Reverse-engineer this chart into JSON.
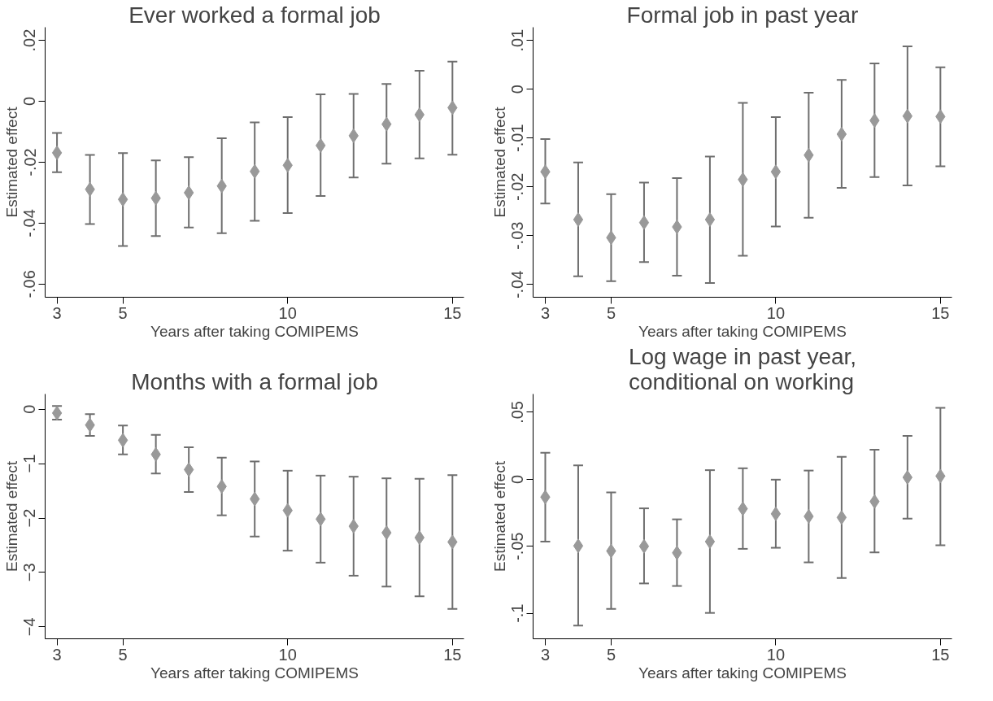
{
  "chart_data": [
    {
      "type": "scatter",
      "title": "Ever worked a formal job",
      "xlabel": "Years after taking COMIPEMS",
      "ylabel": "Estimated effect",
      "marker": "diamond",
      "grid": false,
      "x": [
        3,
        4,
        5,
        6,
        7,
        8,
        9,
        10,
        11,
        12,
        13,
        14,
        15
      ],
      "series": [
        {
          "color": "#999999",
          "values": [
            -0.0169,
            -0.0289,
            -0.0322,
            -0.0318,
            -0.03,
            -0.0278,
            -0.023,
            -0.021,
            -0.0145,
            -0.0113,
            -0.0075,
            -0.0044,
            -0.0021
          ],
          "errors": [
            [
              -0.0233,
              -0.0104
            ],
            [
              -0.0403,
              -0.0176
            ],
            [
              -0.0475,
              -0.017
            ],
            [
              -0.0442,
              -0.0194
            ],
            [
              -0.0414,
              -0.0183
            ],
            [
              -0.0433,
              -0.0121
            ],
            [
              -0.0392,
              -0.0069
            ],
            [
              -0.0367,
              -0.0052
            ],
            [
              -0.0311,
              0.0023
            ],
            [
              -0.025,
              0.0024
            ],
            [
              -0.0205,
              0.0057
            ],
            [
              -0.0187,
              0.01
            ],
            [
              -0.0175,
              0.013
            ]
          ]
        }
      ],
      "xlim": [
        2.64,
        15.35
      ],
      "ylim": [
        -0.0643,
        0.0243
      ],
      "xticks": [
        3,
        5,
        10,
        15
      ],
      "yticks": [
        {
          "value": -0.06,
          "label": "-.06"
        },
        {
          "value": -0.04,
          "label": "-.04"
        },
        {
          "value": -0.02,
          "label": "-.02"
        },
        0,
        {
          "value": 0.02,
          "label": ".02"
        }
      ]
    },
    {
      "type": "scatter",
      "title": "Formal job in past year",
      "xlabel": "Years after taking COMIPEMS",
      "ylabel": "Estimated effect",
      "marker": "diamond",
      "grid": false,
      "x": [
        3,
        4,
        5,
        6,
        7,
        8,
        9,
        10,
        11,
        12,
        13,
        14,
        15
      ],
      "series": [
        {
          "color": "#999999",
          "values": [
            -0.0169,
            -0.0267,
            -0.0304,
            -0.0273,
            -0.0282,
            -0.0267,
            -0.0185,
            -0.0169,
            -0.0135,
            -0.0092,
            -0.0064,
            -0.0055,
            -0.0056
          ],
          "errors": [
            [
              -0.0234,
              -0.0102
            ],
            [
              -0.0383,
              -0.015
            ],
            [
              -0.0393,
              -0.0215
            ],
            [
              -0.0354,
              -0.0191
            ],
            [
              -0.0382,
              -0.0182
            ],
            [
              -0.0397,
              -0.0138
            ],
            [
              -0.0341,
              -0.0028
            ],
            [
              -0.0281,
              -0.0057
            ],
            [
              -0.0263,
              -0.0007
            ],
            [
              -0.0202,
              0.0019
            ],
            [
              -0.018,
              0.0053
            ],
            [
              -0.0197,
              0.0088
            ],
            [
              -0.0158,
              0.0045
            ]
          ]
        }
      ],
      "xlim": [
        2.63,
        15.35
      ],
      "ylim": [
        -0.0426,
        0.0127
      ],
      "xticks": [
        3,
        5,
        10,
        15
      ],
      "yticks": [
        {
          "value": -0.04,
          "label": "-.04"
        },
        {
          "value": -0.03,
          "label": "-.03"
        },
        {
          "value": -0.02,
          "label": "-.02"
        },
        {
          "value": -0.01,
          "label": "-.01"
        },
        0,
        {
          "value": 0.01,
          "label": ".01"
        }
      ]
    },
    {
      "type": "scatter",
      "title": "Months with a formal job",
      "xlabel": "Years after taking COMIPEMS",
      "ylabel": "Estimated effect",
      "marker": "diamond",
      "grid": false,
      "x": [
        3,
        4,
        5,
        6,
        7,
        8,
        9,
        10,
        11,
        12,
        13,
        14,
        15
      ],
      "series": [
        {
          "color": "#999999",
          "values": [
            -0.07,
            -0.29,
            -0.57,
            -0.83,
            -1.11,
            -1.42,
            -1.65,
            -1.86,
            -2.02,
            -2.15,
            -2.27,
            -2.36,
            -2.44
          ],
          "errors": [
            [
              -0.19,
              0.06
            ],
            [
              -0.49,
              -0.09
            ],
            [
              -0.83,
              -0.3
            ],
            [
              -1.18,
              -0.47
            ],
            [
              -1.52,
              -0.7
            ],
            [
              -1.95,
              -0.89
            ],
            [
              -2.34,
              -0.96
            ],
            [
              -2.6,
              -1.13
            ],
            [
              -2.82,
              -1.22
            ],
            [
              -3.06,
              -1.24
            ],
            [
              -3.26,
              -1.27
            ],
            [
              -3.44,
              -1.28
            ],
            [
              -3.67,
              -1.21
            ]
          ]
        }
      ],
      "xlim": [
        2.64,
        15.35
      ],
      "ylim": [
        -4.22,
        0.28
      ],
      "xticks": [
        3,
        5,
        10,
        15
      ],
      "yticks": [
        -4,
        -3,
        -2,
        -1,
        0
      ]
    },
    {
      "type": "scatter",
      "title": "Log wage in past year,\nconditional on working",
      "xlabel": "Years after taking COMIPEMS",
      "ylabel": "Estimated effect",
      "marker": "diamond",
      "grid": false,
      "x": [
        3,
        4,
        5,
        6,
        7,
        8,
        9,
        10,
        11,
        12,
        13,
        14,
        15
      ],
      "series": [
        {
          "color": "#999999",
          "values": [
            -0.0133,
            -0.0497,
            -0.0535,
            -0.05,
            -0.0549,
            -0.0465,
            -0.022,
            -0.0258,
            -0.0277,
            -0.0285,
            -0.0166,
            0.0014,
            0.0024
          ],
          "errors": [
            [
              -0.0465,
              0.0198
            ],
            [
              -0.1092,
              0.0103
            ],
            [
              -0.0967,
              -0.0098
            ],
            [
              -0.0777,
              -0.0217
            ],
            [
              -0.0796,
              -0.0299
            ],
            [
              -0.0997,
              0.0068
            ],
            [
              -0.0519,
              0.0082
            ],
            [
              -0.0511,
              -0.0003
            ],
            [
              -0.062,
              0.0065
            ],
            [
              -0.0736,
              0.0168
            ],
            [
              -0.0546,
              0.022
            ],
            [
              -0.0293,
              0.0323
            ],
            [
              -0.0492,
              0.0533
            ]
          ]
        }
      ],
      "xlim": [
        2.63,
        15.35
      ],
      "ylim": [
        -0.119,
        0.0636
      ],
      "xticks": [
        3,
        5,
        10,
        15
      ],
      "yticks": [
        {
          "value": -0.1,
          "label": "-.1"
        },
        {
          "value": -0.05,
          "label": "-.05"
        },
        0,
        {
          "value": 0.05,
          "label": ".05"
        }
      ]
    }
  ]
}
